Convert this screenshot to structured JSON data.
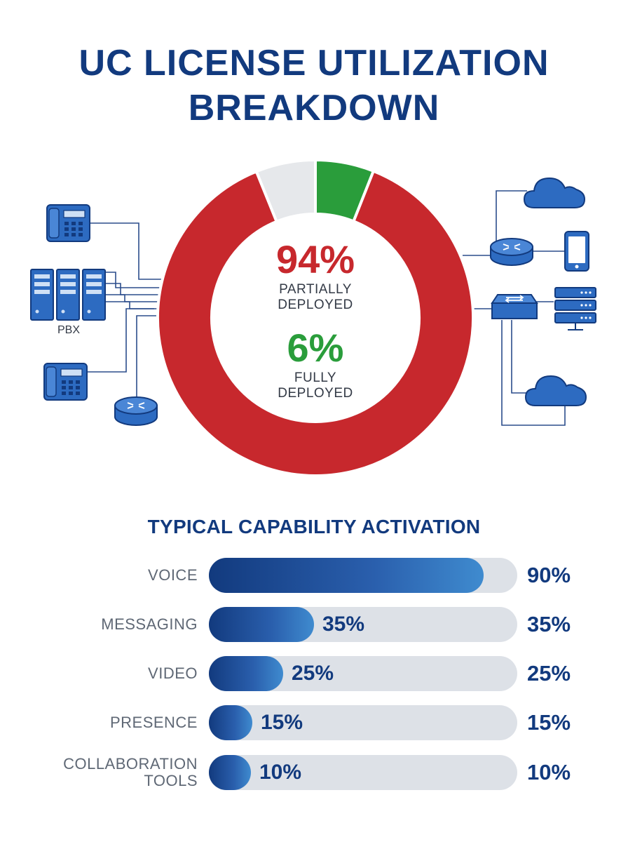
{
  "title": {
    "line1": "UC LICENSE UTILIZATION",
    "line2": "BREAKDOWN"
  },
  "colors": {
    "title": "#123a7e",
    "partial": "#c7282d",
    "full": "#2a9d3b",
    "unused": "#e6e8eb",
    "icon_blue": "#2d6bc1",
    "icon_dark": "#123a7e",
    "bar_track": "#dde1e7"
  },
  "diagram": {
    "pbx_label": "PBX",
    "left_icons": [
      "desk-phone-icon",
      "server-rack-icon",
      "desk-phone-icon",
      "router-icon"
    ],
    "right_icons": [
      "cloud-icon",
      "router-icon",
      "smartphone-icon",
      "network-switch-icon",
      "server-stack-icon",
      "cloud-icon"
    ]
  },
  "chart_data": [
    {
      "type": "pie",
      "title": "",
      "slices": [
        {
          "label": "PARTIALLY DEPLOYED",
          "value": 94,
          "display": "94%"
        },
        {
          "label": "FULLY DEPLOYED",
          "value": 6,
          "display": "6%"
        }
      ]
    },
    {
      "type": "bar",
      "orientation": "horizontal",
      "title": "TYPICAL CAPABILITY ACTIVATION",
      "xlim": [
        0,
        100
      ],
      "bars": [
        {
          "label": "VOICE",
          "value": 90,
          "inline": "",
          "right": "90%"
        },
        {
          "label": "MESSAGING",
          "value": 35,
          "inline": "35%",
          "right": "35%"
        },
        {
          "label": "VIDEO",
          "value": 25,
          "inline": "25%",
          "right": "25%"
        },
        {
          "label": "PRESENCE",
          "value": 15,
          "inline": "15%",
          "right": "15%"
        },
        {
          "label": "COLLABORATION TOOLS",
          "value": 10,
          "inline": "10%",
          "right": "10%"
        }
      ]
    }
  ]
}
